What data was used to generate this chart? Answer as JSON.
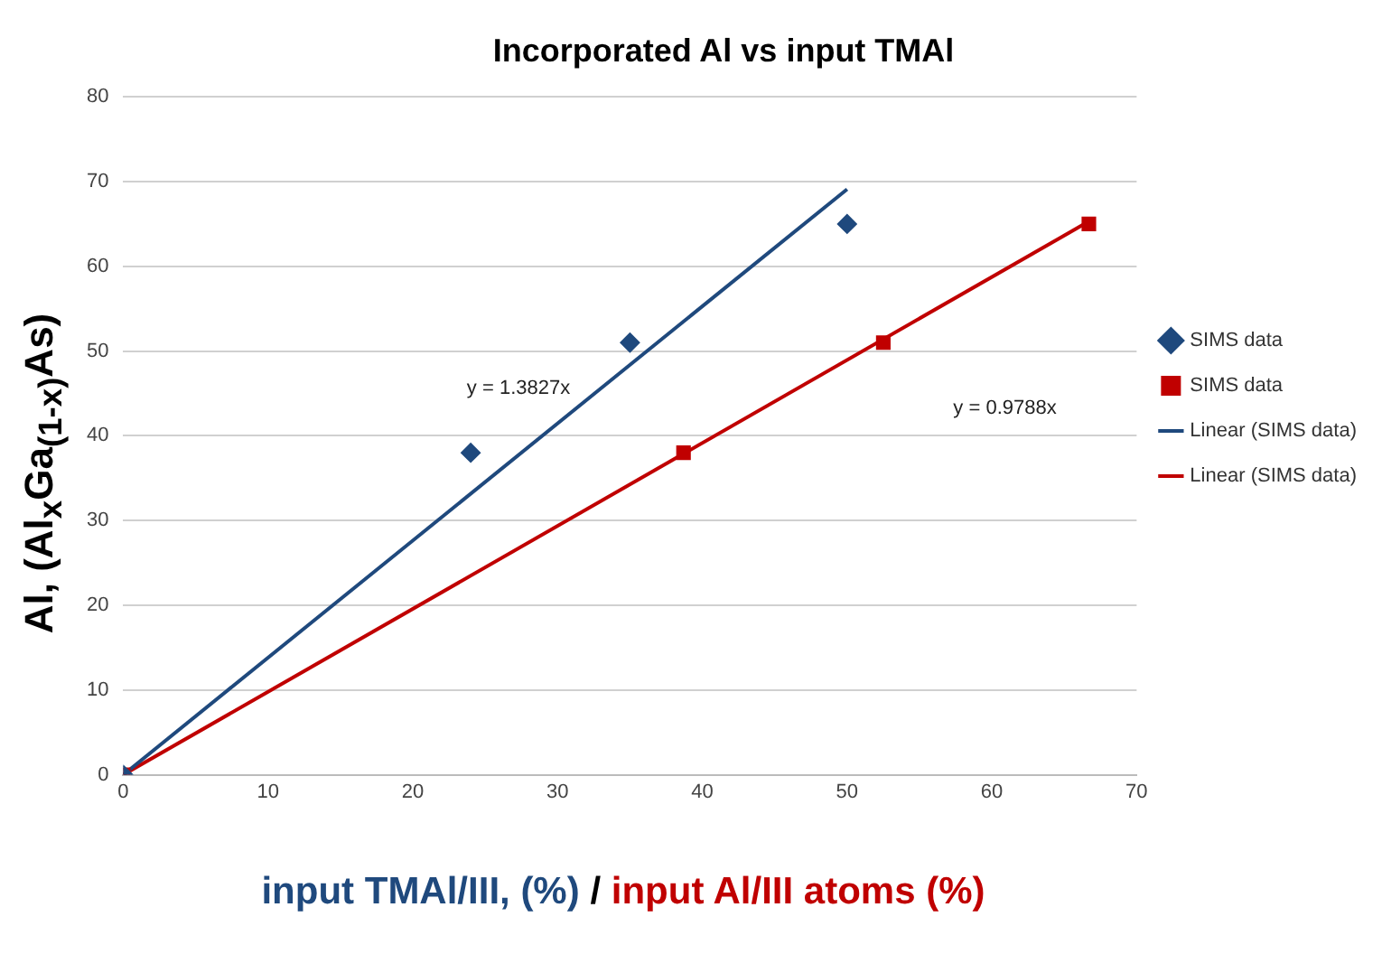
{
  "chart_data": {
    "type": "scatter",
    "title": "Incorporated Al vs input TMAl",
    "xlabel": "input TMAl/III, (%) / input Al/III atoms (%)",
    "ylabel": "Al, (Al$_{x}$Ga$_{(1-x)}$As)",
    "xlim": [
      0,
      70
    ],
    "xticks": [
      0,
      10,
      20,
      30,
      40,
      50,
      60,
      70
    ],
    "ylim": [
      0,
      80
    ],
    "yticks": [
      0,
      10,
      20,
      30,
      40,
      50,
      60,
      70,
      80
    ],
    "grid": "y",
    "legend": "right",
    "series": [
      {
        "name": "SIMS data",
        "marker": "diamond",
        "color": "#1f497d",
        "x": [
          0,
          24,
          35,
          50
        ],
        "values": [
          0,
          38,
          51,
          65
        ]
      },
      {
        "name": "SIMS data",
        "marker": "square",
        "color": "#c00000",
        "x": [
          0,
          38.7,
          52.5,
          66.7
        ],
        "values": [
          0,
          38,
          51,
          65
        ]
      },
      {
        "name": "Linear (SIMS data)",
        "type": "line",
        "marker": "none",
        "color": "#1f497d",
        "x": [
          0,
          50
        ],
        "values": [
          0,
          69.1
        ]
      },
      {
        "name": "Linear (SIMS data)",
        "type": "line",
        "marker": "none",
        "color": "#c00000",
        "x": [
          0,
          66.7
        ],
        "values": [
          0,
          65.3
        ]
      }
    ],
    "annotations": [
      "y = 1.3827x",
      "y = 0.9788x"
    ]
  }
}
